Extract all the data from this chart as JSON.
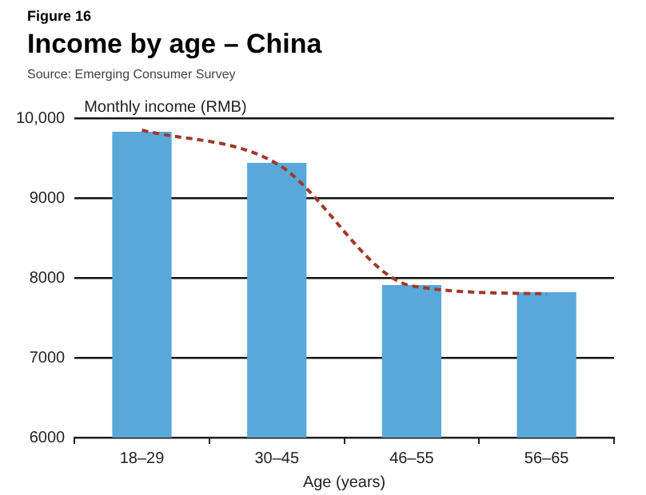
{
  "chart_data": {
    "type": "bar",
    "title": "Income by age – China",
    "annotations": [
      "Figure 16",
      "Source: Emerging Consumer Survey"
    ],
    "xlabel": "Age (years)",
    "ylabel": "Monthly income (RMB)",
    "categories": [
      "18–29",
      "30–45",
      "46–55",
      "56–65"
    ],
    "series": [
      {
        "color": "#58a8da",
        "values": [
          9830,
          9440,
          7910,
          7820
        ]
      },
      {
        "type": "line",
        "color": "#a0392b",
        "line_style": "dashed",
        "marker": "none",
        "values": [
          9850,
          9430,
          7900,
          7800
        ]
      }
    ],
    "ylim": [
      6000,
      10000
    ],
    "yticks": [
      6000,
      7000,
      8000,
      9000,
      {
        "value": 10000,
        "label": "10,000"
      }
    ],
    "grid": "y",
    "legend": false
  }
}
